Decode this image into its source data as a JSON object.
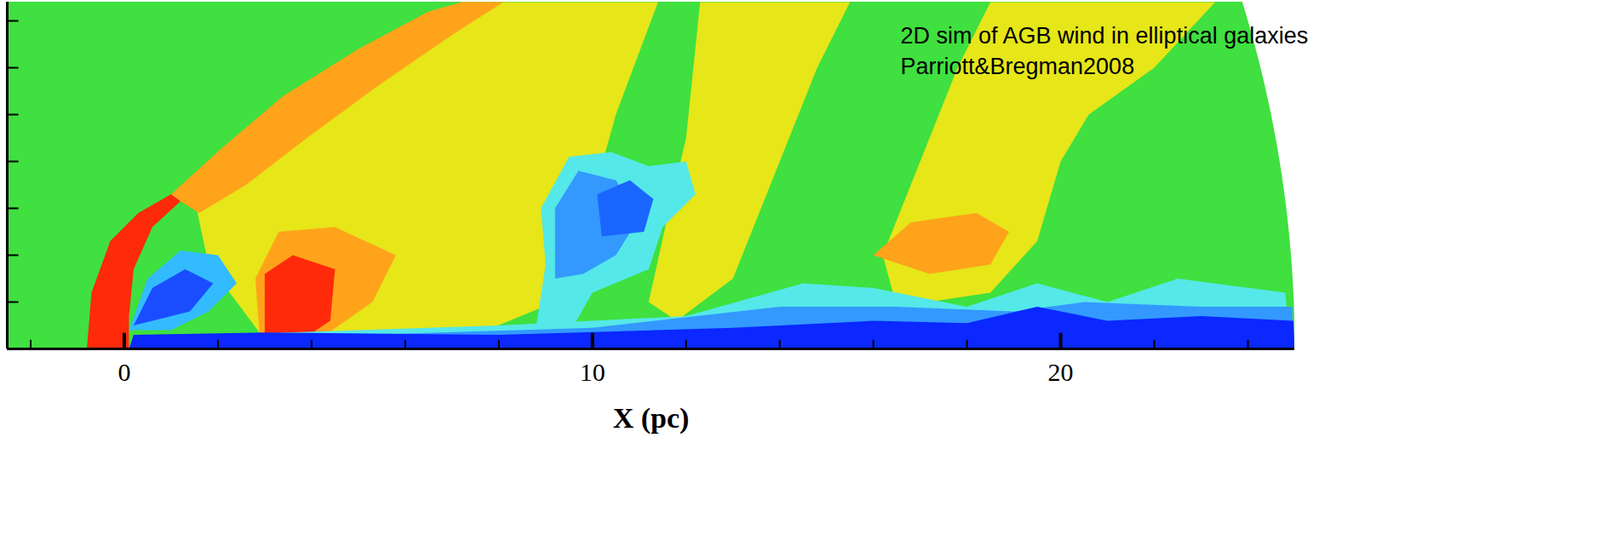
{
  "chart_data": {
    "type": "contour",
    "annotations": [
      "2D sim of AGB wind in elliptical galaxies",
      "Parriott&Bregman2008"
    ],
    "xlabel": "X (pc)",
    "xlim": [
      -2.5,
      25
    ],
    "ylim": [
      0,
      7.4
    ],
    "xticks": [
      0,
      10,
      20
    ],
    "x_minor_ticks": [
      -2,
      2,
      4,
      6,
      8,
      12,
      14,
      16,
      18,
      22,
      24
    ],
    "yticks": [
      0,
      1,
      2,
      3,
      4,
      5,
      6,
      7
    ],
    "tick_labels": "x",
    "domain_radius": 25,
    "color": "#3fe03f",
    "regions": [
      {
        "color": "#e6e619",
        "points": [
          [
            1.5,
            3.2
          ],
          [
            7.2,
            7.4
          ],
          [
            11.4,
            7.4
          ],
          [
            10.5,
            5.0
          ],
          [
            9.8,
            2.5
          ],
          [
            9.2,
            1.0
          ],
          [
            7.5,
            0.3
          ],
          [
            3.0,
            0.2
          ],
          [
            1.8,
            1.8
          ]
        ]
      },
      {
        "color": "#e6e619",
        "points": [
          [
            12.3,
            7.4
          ],
          [
            15.5,
            7.4
          ],
          [
            14.8,
            6.0
          ],
          [
            14.2,
            4.5
          ],
          [
            13.6,
            3.0
          ],
          [
            13.0,
            1.5
          ],
          [
            11.8,
            0.6
          ],
          [
            11.2,
            1.0
          ],
          [
            11.6,
            2.8
          ],
          [
            12.0,
            4.5
          ]
        ]
      },
      {
        "color": "#e6e619",
        "points": [
          [
            18.5,
            7.4
          ],
          [
            23.3,
            7.4
          ],
          [
            22.0,
            6.0
          ],
          [
            20.6,
            5.0
          ],
          [
            20.0,
            4.0
          ],
          [
            19.5,
            2.3
          ],
          [
            18.5,
            1.2
          ],
          [
            16.5,
            0.9
          ],
          [
            16.2,
            2.0
          ],
          [
            17.0,
            4.0
          ],
          [
            17.8,
            6.0
          ]
        ]
      },
      {
        "color": "#ffa31a",
        "points": [
          [
            1.0,
            3.3
          ],
          [
            2.1,
            4.3
          ],
          [
            3.4,
            5.4
          ],
          [
            5.0,
            6.4
          ],
          [
            6.5,
            7.2
          ],
          [
            7.2,
            7.4
          ],
          [
            8.1,
            7.4
          ],
          [
            7.0,
            6.7
          ],
          [
            5.4,
            5.6
          ],
          [
            3.9,
            4.5
          ],
          [
            2.6,
            3.5
          ],
          [
            1.6,
            2.9
          ],
          [
            1.2,
            3.15
          ]
        ]
      },
      {
        "color": "#ffa31a",
        "points": [
          [
            2.9,
            0.2
          ],
          [
            2.8,
            1.5
          ],
          [
            3.3,
            2.5
          ],
          [
            4.5,
            2.6
          ],
          [
            5.8,
            2.0
          ],
          [
            5.3,
            1.0
          ],
          [
            4.3,
            0.3
          ]
        ]
      },
      {
        "color": "#ffa31a",
        "points": [
          [
            16.0,
            2.0
          ],
          [
            16.8,
            2.7
          ],
          [
            18.2,
            2.9
          ],
          [
            18.9,
            2.5
          ],
          [
            18.5,
            1.8
          ],
          [
            17.2,
            1.6
          ]
        ]
      },
      {
        "color": "#ff2a0a",
        "points": [
          [
            -0.8,
            0
          ],
          [
            -0.7,
            1.2
          ],
          [
            -0.3,
            2.3
          ],
          [
            0.3,
            2.9
          ],
          [
            1.0,
            3.3
          ],
          [
            1.2,
            3.15
          ],
          [
            0.6,
            2.6
          ],
          [
            0.2,
            1.7
          ],
          [
            0.1,
            0.7
          ],
          [
            0.1,
            0
          ]
        ]
      },
      {
        "color": "#ff2a0a",
        "points": [
          [
            3.0,
            0.2
          ],
          [
            3.0,
            1.6
          ],
          [
            3.6,
            2.0
          ],
          [
            4.5,
            1.7
          ],
          [
            4.4,
            0.6
          ],
          [
            3.8,
            0.2
          ]
        ]
      },
      {
        "color": "#55e8e8",
        "points": [
          [
            2.0,
            0.3
          ],
          [
            8.0,
            0.5
          ],
          [
            12.0,
            0.7
          ],
          [
            14.5,
            1.4
          ],
          [
            16.0,
            1.3
          ],
          [
            18.0,
            0.9
          ],
          [
            19.5,
            1.4
          ],
          [
            21.0,
            1.0
          ],
          [
            22.5,
            1.5
          ],
          [
            24.8,
            1.2
          ],
          [
            24.9,
            0
          ],
          [
            2.0,
            0
          ]
        ]
      },
      {
        "color": "#3399ff",
        "points": [
          [
            2.0,
            0.2
          ],
          [
            10.0,
            0.45
          ],
          [
            14.0,
            0.9
          ],
          [
            16.5,
            0.9
          ],
          [
            19.0,
            0.8
          ],
          [
            20.5,
            1.0
          ],
          [
            23.0,
            0.9
          ],
          [
            24.95,
            0.9
          ],
          [
            24.95,
            0
          ],
          [
            2.0,
            0
          ]
        ]
      },
      {
        "color": "#0a28ff",
        "points": [
          [
            0.1,
            0
          ],
          [
            0.2,
            0.3
          ],
          [
            3.0,
            0.35
          ],
          [
            8.0,
            0.3
          ],
          [
            13.0,
            0.45
          ],
          [
            16.0,
            0.6
          ],
          [
            18.0,
            0.55
          ],
          [
            19.5,
            0.9
          ],
          [
            21.0,
            0.6
          ],
          [
            23.0,
            0.7
          ],
          [
            24.97,
            0.6
          ],
          [
            25.0,
            0
          ]
        ]
      },
      {
        "color": "#33bbff",
        "points": [
          [
            0.1,
            0.4
          ],
          [
            0.5,
            1.5
          ],
          [
            1.2,
            2.1
          ],
          [
            2.0,
            2.0
          ],
          [
            2.4,
            1.4
          ],
          [
            1.8,
            0.8
          ],
          [
            1.0,
            0.4
          ]
        ]
      },
      {
        "color": "#1a4dff",
        "points": [
          [
            0.2,
            0.5
          ],
          [
            0.6,
            1.3
          ],
          [
            1.3,
            1.7
          ],
          [
            1.9,
            1.4
          ],
          [
            1.4,
            0.8
          ]
        ]
      },
      {
        "color": "#55e8e8",
        "points": [
          [
            8.8,
            0.5
          ],
          [
            9.0,
            1.8
          ],
          [
            8.9,
            3.0
          ],
          [
            9.5,
            4.1
          ],
          [
            10.4,
            4.2
          ],
          [
            11.2,
            3.9
          ],
          [
            12.0,
            4.0
          ],
          [
            12.2,
            3.3
          ],
          [
            11.5,
            2.6
          ],
          [
            11.2,
            1.7
          ],
          [
            10.0,
            1.2
          ],
          [
            9.6,
            0.5
          ]
        ]
      },
      {
        "color": "#3399ff",
        "points": [
          [
            9.2,
            1.5
          ],
          [
            9.2,
            3.0
          ],
          [
            9.7,
            3.8
          ],
          [
            10.5,
            3.6
          ],
          [
            11.0,
            2.8
          ],
          [
            10.5,
            2.0
          ],
          [
            9.8,
            1.6
          ]
        ]
      },
      {
        "color": "#1a66ff",
        "points": [
          [
            10.2,
            2.4
          ],
          [
            10.1,
            3.3
          ],
          [
            10.8,
            3.6
          ],
          [
            11.3,
            3.2
          ],
          [
            11.1,
            2.5
          ]
        ]
      }
    ]
  }
}
